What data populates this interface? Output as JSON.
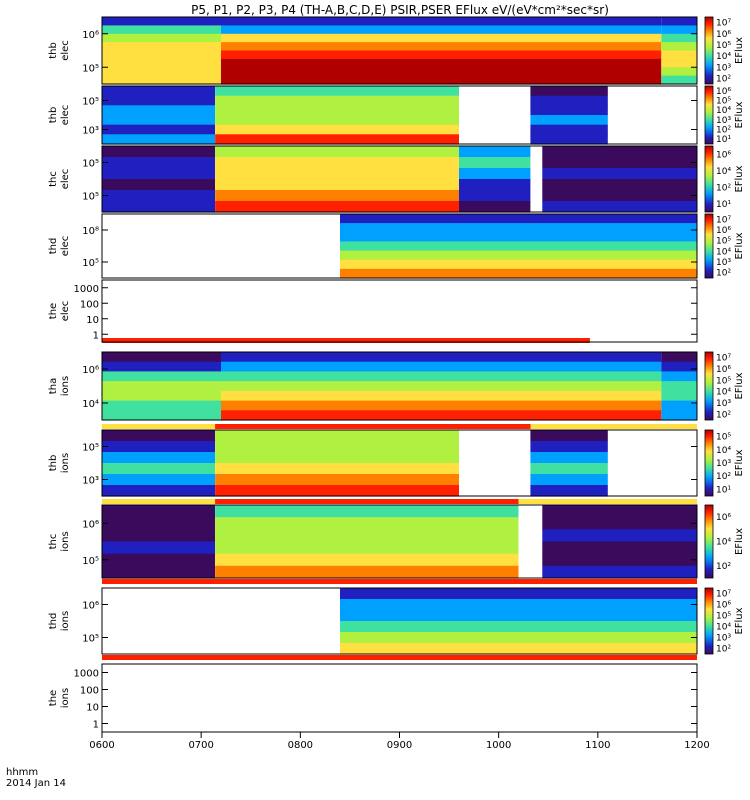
{
  "chart_data": {
    "type": "heatmap",
    "title": "P5, P1, P2, P3, P4 (TH-A,B,C,D,E) PSIR,PSER EFlux eV/(eV*cm²*sec*sr)",
    "x_axis": {
      "ticks": [
        "0600",
        "0700",
        "0800",
        "0900",
        "1000",
        "1100",
        "1200"
      ],
      "range": [
        "06:00",
        "12:00"
      ],
      "label_line1": "hhmm",
      "label_line2": "2014 Jan 14"
    },
    "colorbar_label": "EFlux",
    "palette": [
      "#3a0a5c",
      "#2020c0",
      "#00a0ff",
      "#40e0a0",
      "#b0f040",
      "#ffe040",
      "#ff8000",
      "#ff2000",
      "#b00000"
    ],
    "panels": [
      {
        "ylabel": [
          "thb",
          "elec"
        ],
        "yticks": [
          "10⁶",
          "10⁵"
        ],
        "cbar_ticks": [
          "10⁷",
          "10⁶",
          "10⁵",
          "10⁴",
          "10³",
          "10²"
        ]
      },
      {
        "ylabel": [
          "thb",
          "elec"
        ],
        "yticks": [
          "10⁵",
          "10³"
        ],
        "cbar_ticks": [
          "10⁶",
          "10⁵",
          "10⁴",
          "10³",
          "10²",
          "10¹"
        ]
      },
      {
        "ylabel": [
          "thc",
          "elec"
        ],
        "yticks": [
          "10⁵",
          "10⁵"
        ],
        "cbar_ticks": [
          "10⁶",
          "10⁴",
          "10²",
          "10¹"
        ]
      },
      {
        "ylabel": [
          "thd",
          "elec"
        ],
        "yticks": [
          "10⁸",
          "10⁵"
        ],
        "cbar_ticks": [
          "10⁷",
          "10⁶",
          "10⁵",
          "10⁴",
          "10³",
          "10²"
        ]
      },
      {
        "ylabel": [
          "the",
          "elec"
        ],
        "yticks": [
          "1000",
          "100",
          "10",
          "1"
        ],
        "cbar_ticks": []
      },
      {
        "ylabel": [
          "tha",
          "ions"
        ],
        "yticks": [
          "10⁶",
          "10⁴"
        ],
        "cbar_ticks": [
          "10⁷",
          "10⁶",
          "10⁵",
          "10⁴",
          "10³",
          "10²"
        ]
      },
      {
        "ylabel": [
          "thb",
          "ions"
        ],
        "yticks": [
          "10⁵",
          "10³"
        ],
        "cbar_ticks": [
          "10⁵",
          "10⁴",
          "10³",
          "10²",
          "10¹"
        ]
      },
      {
        "ylabel": [
          "thc",
          "ions"
        ],
        "yticks": [
          "10⁶",
          "10⁵"
        ],
        "cbar_ticks": [
          "10⁶",
          "10⁴",
          "10²"
        ]
      },
      {
        "ylabel": [
          "thd",
          "ions"
        ],
        "yticks": [
          "10⁶",
          "10⁵"
        ],
        "cbar_ticks": [
          "10⁷",
          "10⁶",
          "10⁵",
          "10⁴",
          "10³",
          "10²"
        ]
      },
      {
        "ylabel": [
          "the",
          "ions"
        ],
        "yticks": [
          "1000",
          "100",
          "10",
          "1"
        ],
        "cbar_ticks": []
      }
    ]
  }
}
